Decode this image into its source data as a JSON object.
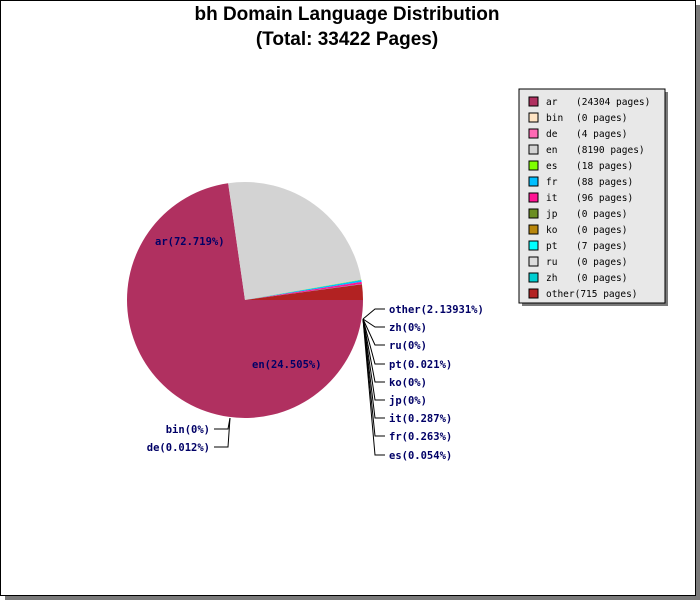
{
  "title": "bh Domain Language Distribution",
  "subtitle": "(Total: 33422 Pages)",
  "chart_data": {
    "type": "pie",
    "title": "bh Domain Language Distribution",
    "subtitle": "(Total: 33422 Pages)",
    "total_pages": 33422,
    "legend_position": "top-right",
    "slices": [
      {
        "name": "ar",
        "pages": 24304,
        "percent_label": "72.719%",
        "color": "#b03060"
      },
      {
        "name": "bin",
        "pages": 0,
        "percent_label": "0%",
        "color": "#ffe4c4"
      },
      {
        "name": "de",
        "pages": 4,
        "percent_label": "0.012%",
        "color": "#ff69b4"
      },
      {
        "name": "en",
        "pages": 8190,
        "percent_label": "24.505%",
        "color": "#d3d3d3"
      },
      {
        "name": "es",
        "pages": 18,
        "percent_label": "0.054%",
        "color": "#7fff00"
      },
      {
        "name": "fr",
        "pages": 88,
        "percent_label": "0.263%",
        "color": "#00bfff"
      },
      {
        "name": "it",
        "pages": 96,
        "percent_label": "0.287%",
        "color": "#ff1493"
      },
      {
        "name": "jp",
        "pages": 0,
        "percent_label": "0%",
        "color": "#6b8e23"
      },
      {
        "name": "ko",
        "pages": 0,
        "percent_label": "0%",
        "color": "#b8860b"
      },
      {
        "name": "pt",
        "pages": 7,
        "percent_label": "0.021%",
        "color": "#00ffff"
      },
      {
        "name": "ru",
        "pages": 0,
        "percent_label": "0%",
        "color": "#dcdcdc"
      },
      {
        "name": "zh",
        "pages": 0,
        "percent_label": "0%",
        "color": "#00ced1"
      },
      {
        "name": "other",
        "pages": 715,
        "percent_label": "2.13931%",
        "color": "#b22222"
      }
    ],
    "pie_labels": {
      "ar": "ar(72.719%)",
      "en": "en(24.505%)",
      "bin": "bin(0%)",
      "de": "de(0.012%)",
      "other": "other(2.13931%)",
      "zh": "zh(0%)",
      "ru": "ru(0%)",
      "pt": "pt(0.021%)",
      "ko": "ko(0%)",
      "jp": "jp(0%)",
      "it": "it(0.287%)",
      "fr": "fr(0.263%)",
      "es": "es(0.054%)"
    },
    "legend_entries": [
      {
        "name": "ar",
        "text": "(24304 pages)"
      },
      {
        "name": "bin",
        "text": "(0 pages)"
      },
      {
        "name": "de",
        "text": "(4 pages)"
      },
      {
        "name": "en",
        "text": "(8190 pages)"
      },
      {
        "name": "es",
        "text": "(18 pages)"
      },
      {
        "name": "fr",
        "text": "(88 pages)"
      },
      {
        "name": "it",
        "text": "(96 pages)"
      },
      {
        "name": "jp",
        "text": "(0 pages)"
      },
      {
        "name": "ko",
        "text": "(0 pages)"
      },
      {
        "name": "pt",
        "text": "(7 pages)"
      },
      {
        "name": "ru",
        "text": "(0 pages)"
      },
      {
        "name": "zh",
        "text": "(0 pages)"
      },
      {
        "name": "other",
        "text": "other(715 pages)"
      }
    ]
  }
}
